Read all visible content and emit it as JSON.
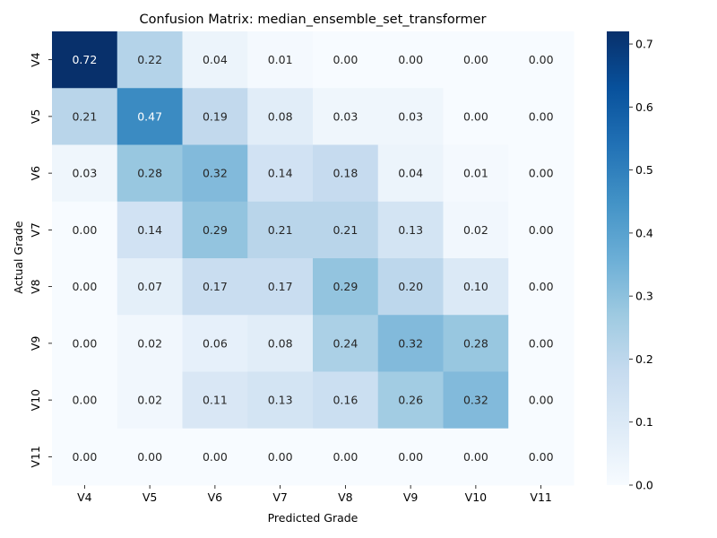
{
  "chart_data": {
    "type": "heatmap",
    "title": "Confusion Matrix: median_ensemble_set_transformer",
    "xlabel": "Predicted Grade",
    "ylabel": "Actual Grade",
    "x_categories": [
      "V4",
      "V5",
      "V6",
      "V7",
      "V8",
      "V9",
      "V10",
      "V11"
    ],
    "y_categories": [
      "V4",
      "V5",
      "V6",
      "V7",
      "V8",
      "V9",
      "V10",
      "V11"
    ],
    "values": [
      [
        0.72,
        0.22,
        0.04,
        0.01,
        0.0,
        0.0,
        0.0,
        0.0
      ],
      [
        0.21,
        0.47,
        0.19,
        0.08,
        0.03,
        0.03,
        0.0,
        0.0
      ],
      [
        0.03,
        0.28,
        0.32,
        0.14,
        0.18,
        0.04,
        0.01,
        0.0
      ],
      [
        0.0,
        0.14,
        0.29,
        0.21,
        0.21,
        0.13,
        0.02,
        0.0
      ],
      [
        0.0,
        0.07,
        0.17,
        0.17,
        0.29,
        0.2,
        0.1,
        0.0
      ],
      [
        0.0,
        0.02,
        0.06,
        0.08,
        0.24,
        0.32,
        0.28,
        0.0
      ],
      [
        0.0,
        0.02,
        0.11,
        0.13,
        0.16,
        0.26,
        0.32,
        0.0
      ],
      [
        0.0,
        0.0,
        0.0,
        0.0,
        0.0,
        0.0,
        0.0,
        0.0
      ]
    ],
    "colorbar": {
      "range": [
        0.0,
        0.72
      ],
      "ticks": [
        "0.0",
        "0.1",
        "0.2",
        "0.3",
        "0.4",
        "0.5",
        "0.6",
        "0.7"
      ],
      "colormap": "Blues",
      "low_color": "#f7fbff",
      "high_color": "#08306b"
    },
    "grid": false,
    "legend": "colorbar-right"
  }
}
